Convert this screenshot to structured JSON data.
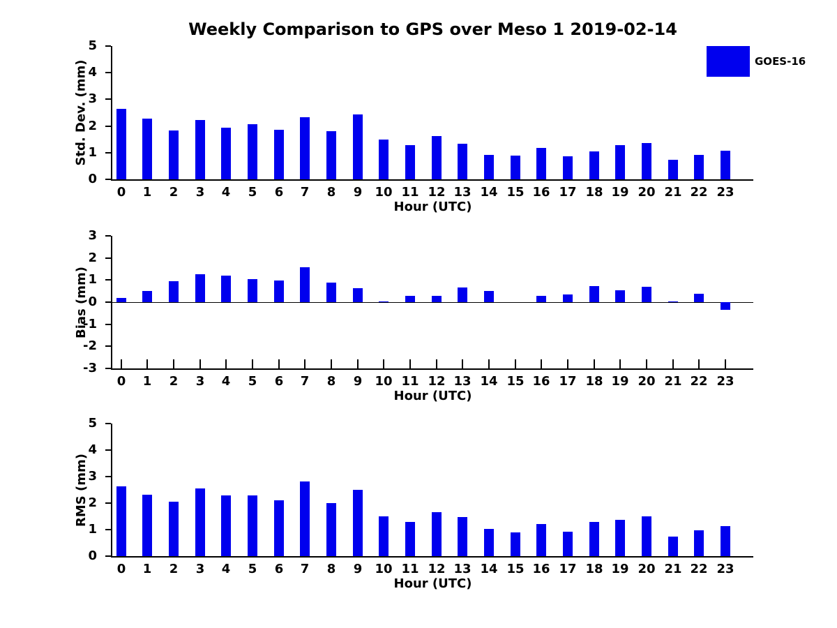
{
  "title": "Weekly Comparison to GPS over Meso 1 2019-02-14",
  "legend": {
    "label": "GOES-16"
  },
  "colors": {
    "bar": "#0000EE",
    "axis": "#000000",
    "text": "#000000",
    "background": "#FFFFFF"
  },
  "chart_data": [
    {
      "type": "bar",
      "name": "std-dev",
      "ylabel": "Std. Dev. (mm)",
      "xlabel": "Hour (UTC)",
      "ylim": [
        0,
        5
      ],
      "yticks": [
        0,
        1,
        2,
        3,
        4,
        5
      ],
      "grid": false,
      "legend_entries": [
        "GOES-16"
      ],
      "legend_position": "top-right-outside",
      "categories": [
        "0",
        "1",
        "2",
        "3",
        "4",
        "5",
        "6",
        "7",
        "8",
        "9",
        "10",
        "11",
        "12",
        "13",
        "14",
        "15",
        "16",
        "17",
        "18",
        "19",
        "20",
        "21",
        "22",
        "23"
      ],
      "values": [
        2.64,
        2.28,
        1.83,
        2.22,
        1.94,
        2.07,
        1.86,
        2.33,
        1.8,
        2.43,
        1.5,
        1.29,
        1.63,
        1.33,
        0.91,
        0.88,
        1.18,
        0.86,
        1.04,
        1.28,
        1.36,
        0.73,
        0.91,
        1.08
      ]
    },
    {
      "type": "bar",
      "name": "bias",
      "ylabel": "Bias (mm)",
      "xlabel": "Hour (UTC)",
      "ylim": [
        -3,
        3
      ],
      "yticks": [
        -3,
        -2,
        -1,
        0,
        1,
        2,
        3
      ],
      "grid": false,
      "categories": [
        "0",
        "1",
        "2",
        "3",
        "4",
        "5",
        "6",
        "7",
        "8",
        "9",
        "10",
        "11",
        "12",
        "13",
        "14",
        "15",
        "16",
        "17",
        "18",
        "19",
        "20",
        "21",
        "22",
        "23"
      ],
      "values": [
        0.19,
        0.49,
        0.96,
        1.26,
        1.2,
        1.03,
        0.98,
        1.57,
        0.88,
        0.62,
        0.02,
        0.28,
        0.28,
        0.65,
        0.5,
        0.0,
        0.29,
        0.35,
        0.73,
        0.53,
        0.69,
        0.02,
        0.39,
        -0.34
      ]
    },
    {
      "type": "bar",
      "name": "rms",
      "ylabel": "RMS (mm)",
      "xlabel": "Hour (UTC)",
      "ylim": [
        0,
        5
      ],
      "yticks": [
        0,
        1,
        2,
        3,
        4,
        5
      ],
      "grid": false,
      "categories": [
        "0",
        "1",
        "2",
        "3",
        "4",
        "5",
        "6",
        "7",
        "8",
        "9",
        "10",
        "11",
        "12",
        "13",
        "14",
        "15",
        "16",
        "17",
        "18",
        "19",
        "20",
        "21",
        "22",
        "23"
      ],
      "values": [
        2.63,
        2.32,
        2.06,
        2.55,
        2.29,
        2.29,
        2.11,
        2.81,
        2.01,
        2.5,
        1.51,
        1.3,
        1.66,
        1.48,
        1.02,
        0.9,
        1.22,
        0.93,
        1.29,
        1.37,
        1.5,
        0.74,
        0.98,
        1.13
      ]
    }
  ]
}
